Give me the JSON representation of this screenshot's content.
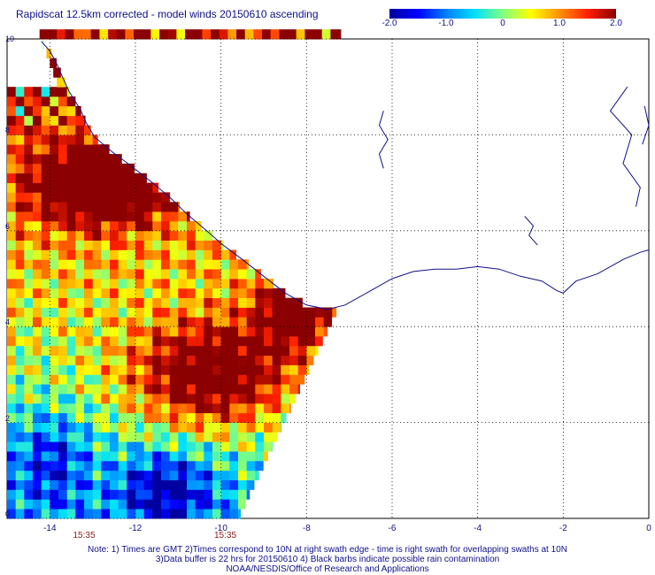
{
  "title": "Rapidscat 12.5km corrected - model winds 20150610 ascending",
  "colorbar": {
    "colors": [
      "#0000a0",
      "#0000ff",
      "#0080ff",
      "#00e0ff",
      "#80ff80",
      "#ffff00",
      "#ff9000",
      "#ff2000",
      "#8b0000"
    ],
    "labels": [
      {
        "value": -2.0,
        "text": "-2.0"
      },
      {
        "value": -1.0,
        "text": "-1.0"
      },
      {
        "value": 0,
        "text": "0"
      },
      {
        "value": 1.0,
        "text": "1.0"
      },
      {
        "value": 2.0,
        "text": "2.0"
      }
    ],
    "range": [
      -2.0,
      2.0
    ]
  },
  "map": {
    "lon_range": [
      -15,
      0
    ],
    "lat_range": [
      0,
      10
    ],
    "x_ticks": [
      {
        "value": -14,
        "text": "-14"
      },
      {
        "value": -12,
        "text": "-12"
      },
      {
        "value": -10,
        "text": "-10"
      },
      {
        "value": -8,
        "text": "-8"
      },
      {
        "value": -6,
        "text": "-6"
      },
      {
        "value": -4,
        "text": "-4"
      },
      {
        "value": -2,
        "text": "-2"
      },
      {
        "value": 0,
        "text": "0"
      }
    ],
    "y_ticks": [
      {
        "value": 0,
        "text": "0"
      },
      {
        "value": 2,
        "text": "2"
      },
      {
        "value": 4,
        "text": "4"
      },
      {
        "value": 6,
        "text": "6"
      },
      {
        "value": 8,
        "text": "8"
      },
      {
        "value": 10,
        "text": "10"
      }
    ],
    "time_labels": [
      {
        "lon": -13.2,
        "text": "15:35"
      },
      {
        "lon": -9.9,
        "text": "15:35"
      }
    ],
    "grid": true,
    "coastline_color": "#10108a"
  },
  "notes": [
    "Note: 1) Times are GMT 2)Times correspond to 10N at right swath edge - time is right swath for overlapping swaths at 10N",
    "3)Data buffer is 22 hrs for 20150610 4) Black barbs indicate possible rain contamination",
    "NOAA/NESDIS/Office of Research and Applications"
  ]
}
